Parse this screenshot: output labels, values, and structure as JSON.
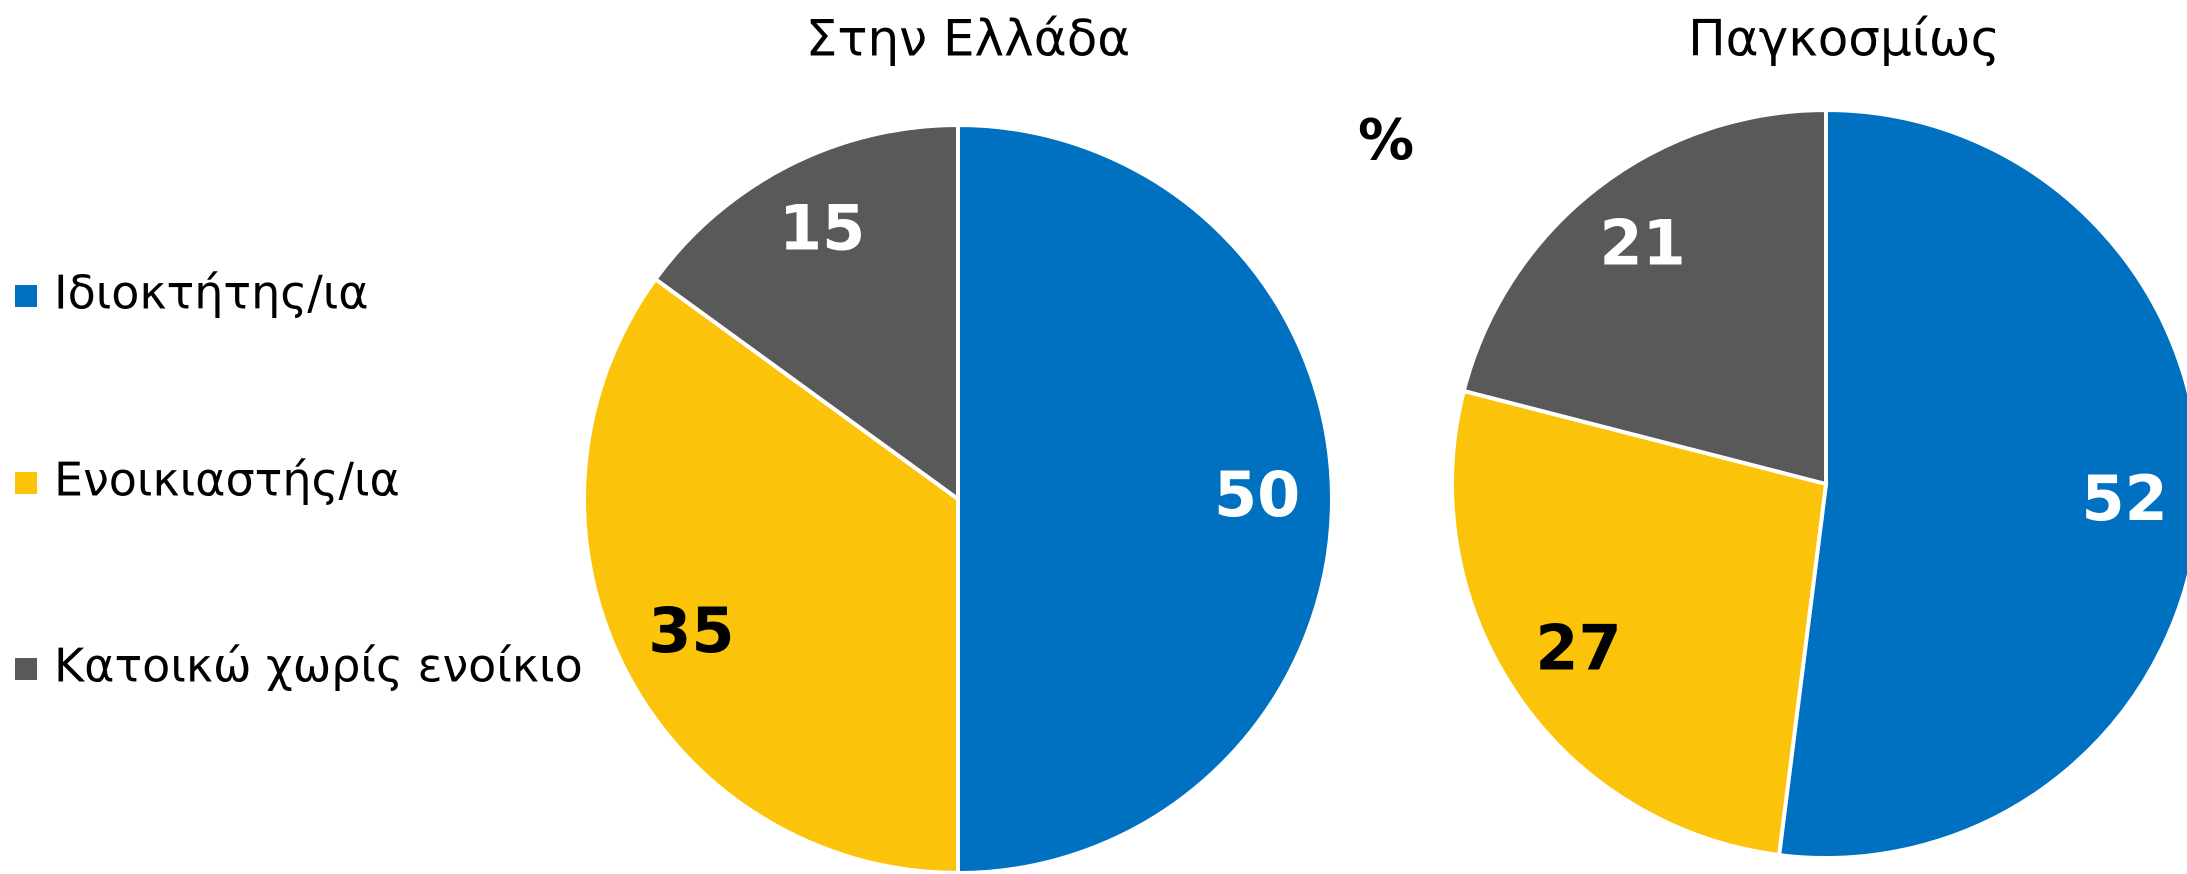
{
  "legend": {
    "labels": [
      "Ιδιοκτήτης/ια",
      "Ενοικιαστής/ια",
      "Κατοικώ χωρίς ενοίκιο"
    ],
    "colors": [
      "#0070c0",
      "#fcc30b",
      "#595959"
    ]
  },
  "annotation": "%",
  "chart_data": [
    {
      "type": "pie",
      "title": "Στην Ελλάδα",
      "values": [
        50,
        35,
        15
      ],
      "label_colors": [
        "#ffffff",
        "#000000",
        "#ffffff"
      ]
    },
    {
      "type": "pie",
      "title": "Παγκοσμίως",
      "values": [
        52,
        27,
        21
      ],
      "label_colors": [
        "#ffffff",
        "#000000",
        "#ffffff"
      ]
    }
  ]
}
